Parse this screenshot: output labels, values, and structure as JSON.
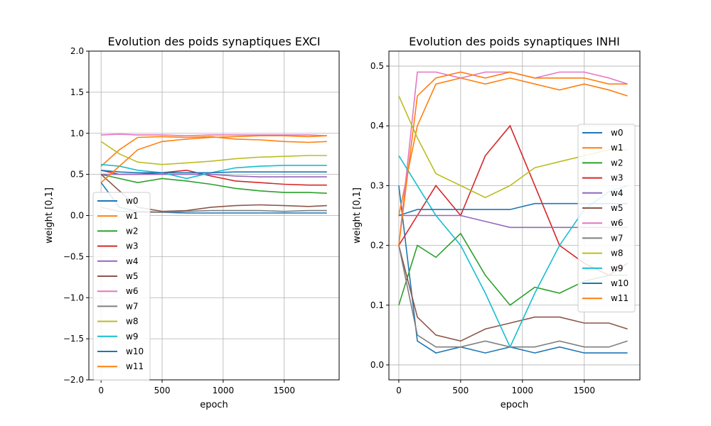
{
  "colors": {
    "w0": "#1f77b4",
    "w1": "#ff7f0e",
    "w2": "#2ca02c",
    "w3": "#d62728",
    "w4": "#9467bd",
    "w5": "#8c564b",
    "w6": "#e377c2",
    "w7": "#7f7f7f",
    "w8": "#bcbd22",
    "w9": "#17becf",
    "w10": "#1f77b4",
    "w11": "#ff7f0e"
  },
  "chart_data": [
    {
      "type": "line",
      "title": "Evolution des poids synaptiques EXCI",
      "xlabel": "epoch",
      "ylabel": "weight [0,1]",
      "xlim": [
        -100,
        1950
      ],
      "ylim": [
        -2.0,
        2.0
      ],
      "xticks": [
        0,
        500,
        1000,
        1500
      ],
      "yticks": [
        -2.0,
        -1.5,
        -1.0,
        -0.5,
        0.0,
        0.5,
        1.0,
        1.5,
        2.0
      ],
      "ytick_labels": [
        "−2.0",
        "−1.5",
        "−1.0",
        "−0.5",
        "0.0",
        "0.5",
        "1.0",
        "1.5",
        "2.0"
      ],
      "xtick_labels": [
        "0",
        "500",
        "1000",
        "1500"
      ],
      "grid": true,
      "legend_position": "lower-left",
      "series": [
        {
          "name": "w0",
          "x": [
            0,
            150,
            300,
            500,
            700,
            900,
            1100,
            1300,
            1500,
            1700,
            1850
          ],
          "y": [
            0.4,
            0.1,
            0.05,
            0.04,
            0.03,
            0.03,
            0.03,
            0.03,
            0.03,
            0.03,
            0.03
          ]
        },
        {
          "name": "w1",
          "x": [
            0,
            150,
            300,
            500,
            700,
            900,
            1100,
            1300,
            1500,
            1700,
            1850
          ],
          "y": [
            0.6,
            0.8,
            0.95,
            0.96,
            0.95,
            0.96,
            0.93,
            0.92,
            0.9,
            0.89,
            0.9
          ]
        },
        {
          "name": "w2",
          "x": [
            0,
            150,
            300,
            500,
            700,
            900,
            1100,
            1300,
            1500,
            1700,
            1850
          ],
          "y": [
            0.5,
            0.45,
            0.4,
            0.45,
            0.42,
            0.38,
            0.33,
            0.3,
            0.28,
            0.28,
            0.27
          ]
        },
        {
          "name": "w3",
          "x": [
            0,
            150,
            300,
            500,
            700,
            900,
            1100,
            1300,
            1500,
            1700,
            1850
          ],
          "y": [
            0.55,
            0.5,
            0.5,
            0.52,
            0.55,
            0.48,
            0.42,
            0.4,
            0.38,
            0.37,
            0.37
          ]
        },
        {
          "name": "w4",
          "x": [
            0,
            150,
            300,
            500,
            700,
            900,
            1100,
            1300,
            1500,
            1700,
            1850
          ],
          "y": [
            0.5,
            0.5,
            0.5,
            0.5,
            0.5,
            0.5,
            0.48,
            0.47,
            0.47,
            0.47,
            0.47
          ]
        },
        {
          "name": "w5",
          "x": [
            0,
            150,
            300,
            500,
            700,
            900,
            1100,
            1300,
            1500,
            1700,
            1850
          ],
          "y": [
            0.5,
            0.3,
            0.1,
            0.05,
            0.06,
            0.1,
            0.12,
            0.13,
            0.12,
            0.11,
            0.12
          ]
        },
        {
          "name": "w6",
          "x": [
            0,
            150,
            300,
            500,
            700,
            900,
            1100,
            1300,
            1500,
            1700,
            1850
          ],
          "y": [
            0.98,
            0.99,
            0.98,
            0.98,
            0.97,
            0.98,
            0.98,
            0.98,
            0.98,
            0.98,
            0.97
          ]
        },
        {
          "name": "w7",
          "x": [
            0,
            150,
            300,
            500,
            700,
            900,
            1100,
            1300,
            1500,
            1700,
            1850
          ],
          "y": [
            0.1,
            0.05,
            0.04,
            0.04,
            0.05,
            0.06,
            0.06,
            0.06,
            0.05,
            0.06,
            0.06
          ]
        },
        {
          "name": "w8",
          "x": [
            0,
            150,
            300,
            500,
            700,
            900,
            1100,
            1300,
            1500,
            1700,
            1850
          ],
          "y": [
            0.9,
            0.75,
            0.65,
            0.62,
            0.64,
            0.66,
            0.69,
            0.71,
            0.72,
            0.73,
            0.73
          ]
        },
        {
          "name": "w9",
          "x": [
            0,
            150,
            300,
            500,
            700,
            900,
            1100,
            1300,
            1500,
            1700,
            1850
          ],
          "y": [
            0.62,
            0.6,
            0.55,
            0.52,
            0.45,
            0.52,
            0.58,
            0.6,
            0.61,
            0.61,
            0.61
          ]
        },
        {
          "name": "w10",
          "x": [
            0,
            150,
            300,
            500,
            700,
            900,
            1100,
            1300,
            1500,
            1700,
            1850
          ],
          "y": [
            0.55,
            0.53,
            0.52,
            0.52,
            0.52,
            0.52,
            0.53,
            0.53,
            0.53,
            0.53,
            0.53
          ]
        },
        {
          "name": "w11",
          "x": [
            0,
            150,
            300,
            500,
            700,
            900,
            1100,
            1300,
            1500,
            1700,
            1850
          ],
          "y": [
            0.4,
            0.6,
            0.8,
            0.9,
            0.93,
            0.95,
            0.96,
            0.97,
            0.97,
            0.96,
            0.97
          ]
        }
      ]
    },
    {
      "type": "line",
      "title": "Evolution des poids synaptiques INHI",
      "xlabel": "epoch",
      "ylabel": "weight [0,1]",
      "xlim": [
        -80,
        1950
      ],
      "ylim": [
        -0.025,
        0.525
      ],
      "xticks": [
        0,
        500,
        1000,
        1500
      ],
      "yticks": [
        0.0,
        0.1,
        0.2,
        0.3,
        0.4,
        0.5
      ],
      "ytick_labels": [
        "0.0",
        "0.1",
        "0.2",
        "0.3",
        "0.4",
        "0.5"
      ],
      "xtick_labels": [
        "0",
        "500",
        "1000",
        "1500"
      ],
      "grid": true,
      "legend_position": "center-right",
      "series": [
        {
          "name": "w0",
          "x": [
            0,
            150,
            300,
            500,
            700,
            900,
            1100,
            1300,
            1500,
            1700,
            1850
          ],
          "y": [
            0.3,
            0.04,
            0.02,
            0.03,
            0.02,
            0.03,
            0.02,
            0.03,
            0.02,
            0.02,
            0.02
          ]
        },
        {
          "name": "w1",
          "x": [
            0,
            150,
            300,
            500,
            700,
            900,
            1100,
            1300,
            1500,
            1700,
            1850
          ],
          "y": [
            0.25,
            0.4,
            0.47,
            0.48,
            0.47,
            0.48,
            0.47,
            0.46,
            0.47,
            0.46,
            0.45
          ]
        },
        {
          "name": "w2",
          "x": [
            0,
            150,
            300,
            500,
            700,
            900,
            1100,
            1300,
            1500,
            1700,
            1850
          ],
          "y": [
            0.1,
            0.2,
            0.18,
            0.22,
            0.15,
            0.1,
            0.13,
            0.12,
            0.14,
            0.15,
            0.15
          ]
        },
        {
          "name": "w3",
          "x": [
            0,
            150,
            300,
            500,
            700,
            900,
            1100,
            1300,
            1500,
            1700,
            1850
          ],
          "y": [
            0.2,
            0.25,
            0.3,
            0.25,
            0.35,
            0.4,
            0.3,
            0.2,
            0.17,
            0.15,
            0.17
          ]
        },
        {
          "name": "w4",
          "x": [
            0,
            150,
            300,
            500,
            700,
            900,
            1100,
            1300,
            1500,
            1700,
            1850
          ],
          "y": [
            0.25,
            0.25,
            0.25,
            0.25,
            0.24,
            0.23,
            0.23,
            0.23,
            0.23,
            0.23,
            0.23
          ]
        },
        {
          "name": "w5",
          "x": [
            0,
            150,
            300,
            500,
            700,
            900,
            1100,
            1300,
            1500,
            1700,
            1850
          ],
          "y": [
            0.2,
            0.08,
            0.05,
            0.04,
            0.06,
            0.07,
            0.08,
            0.08,
            0.07,
            0.07,
            0.06
          ]
        },
        {
          "name": "w6",
          "x": [
            0,
            150,
            300,
            500,
            700,
            900,
            1100,
            1300,
            1500,
            1700,
            1850
          ],
          "y": [
            0.2,
            0.49,
            0.49,
            0.48,
            0.49,
            0.49,
            0.48,
            0.49,
            0.49,
            0.48,
            0.47
          ]
        },
        {
          "name": "w7",
          "x": [
            0,
            150,
            300,
            500,
            700,
            900,
            1100,
            1300,
            1500,
            1700,
            1850
          ],
          "y": [
            0.2,
            0.05,
            0.03,
            0.03,
            0.04,
            0.03,
            0.03,
            0.04,
            0.03,
            0.03,
            0.04
          ]
        },
        {
          "name": "w8",
          "x": [
            0,
            150,
            300,
            500,
            700,
            900,
            1100,
            1300,
            1500,
            1700,
            1850
          ],
          "y": [
            0.45,
            0.38,
            0.32,
            0.3,
            0.28,
            0.3,
            0.33,
            0.34,
            0.35,
            0.36,
            0.36
          ]
        },
        {
          "name": "w9",
          "x": [
            0,
            150,
            300,
            500,
            700,
            900,
            1100,
            1300,
            1500,
            1700,
            1850
          ],
          "y": [
            0.35,
            0.3,
            0.25,
            0.2,
            0.12,
            0.03,
            0.12,
            0.2,
            0.26,
            0.29,
            0.3
          ]
        },
        {
          "name": "w10",
          "x": [
            0,
            150,
            300,
            500,
            700,
            900,
            1100,
            1300,
            1500,
            1700,
            1850
          ],
          "y": [
            0.25,
            0.26,
            0.26,
            0.26,
            0.26,
            0.26,
            0.27,
            0.27,
            0.27,
            0.27,
            0.27
          ]
        },
        {
          "name": "w11",
          "x": [
            0,
            150,
            300,
            500,
            700,
            900,
            1100,
            1300,
            1500,
            1700,
            1850
          ],
          "y": [
            0.2,
            0.45,
            0.48,
            0.49,
            0.48,
            0.49,
            0.48,
            0.48,
            0.48,
            0.47,
            0.47
          ]
        }
      ]
    }
  ]
}
